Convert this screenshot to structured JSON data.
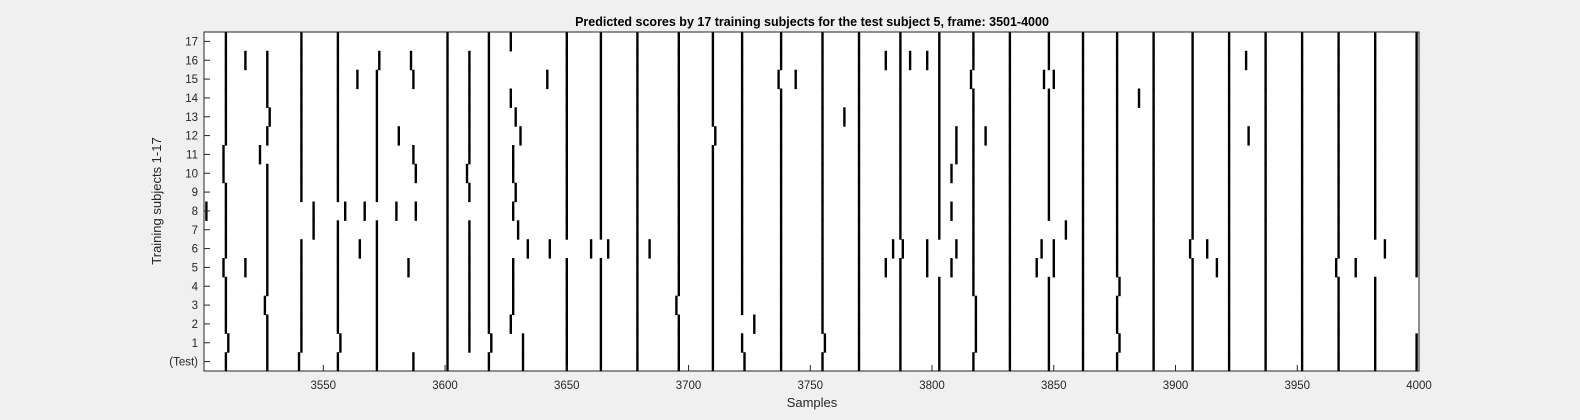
{
  "chart_data": {
    "type": "event-raster",
    "title": "Predicted scores by 17 training subjects for the test subject 5, frame: 3501-4000",
    "xlabel": "Samples",
    "ylabel": "Training subjects 1-17",
    "xlim": [
      3501,
      4000
    ],
    "x_ticks": [
      3550,
      3600,
      3650,
      3700,
      3750,
      3800,
      3850,
      3900,
      3950,
      4000
    ],
    "y_tick_labels": [
      "(Test)",
      "1",
      "2",
      "3",
      "4",
      "5",
      "6",
      "7",
      "8",
      "9",
      "10",
      "11",
      "12",
      "13",
      "14",
      "15",
      "16",
      "17"
    ],
    "colors": {
      "background": "#f0f0f0",
      "axes": "#ffffff",
      "marks": "#000000"
    },
    "rows": [
      {
        "name": "(Test)",
        "x": [
          3510,
          3527,
          3540,
          3556,
          3572,
          3587,
          3601,
          3618,
          3632,
          3650,
          3664,
          3679,
          3696,
          3710,
          3723,
          3738,
          3755,
          3770,
          3787,
          3803,
          3817,
          3832,
          3848,
          3862,
          3876,
          3891,
          3907,
          3922,
          3937,
          3952,
          3967,
          3982,
          3999
        ]
      },
      {
        "name": "1",
        "x": [
          3511,
          3527,
          3541,
          3557,
          3572,
          3601,
          3610,
          3619,
          3632,
          3650,
          3664,
          3679,
          3696,
          3710,
          3722,
          3738,
          3756,
          3770,
          3787,
          3803,
          3818,
          3832,
          3848,
          3862,
          3877,
          3891,
          3907,
          3922,
          3937,
          3952,
          3967,
          3982,
          3999
        ]
      },
      {
        "name": "2",
        "x": [
          3510,
          3527,
          3541,
          3556,
          3572,
          3601,
          3610,
          3618,
          3627,
          3650,
          3664,
          3679,
          3696,
          3710,
          3727,
          3738,
          3755,
          3770,
          3787,
          3803,
          3818,
          3832,
          3848,
          3862,
          3876,
          3891,
          3907,
          3922,
          3937,
          3952,
          3967,
          3982
        ]
      },
      {
        "name": "3",
        "x": [
          3510,
          3526,
          3541,
          3556,
          3572,
          3601,
          3610,
          3618,
          3628,
          3650,
          3664,
          3679,
          3695,
          3710,
          3722,
          3738,
          3755,
          3770,
          3787,
          3803,
          3818,
          3832,
          3848,
          3862,
          3876,
          3891,
          3907,
          3922,
          3937,
          3952,
          3967,
          3982
        ]
      },
      {
        "name": "4",
        "x": [
          3510,
          3527,
          3541,
          3556,
          3572,
          3601,
          3610,
          3618,
          3628,
          3650,
          3664,
          3679,
          3696,
          3710,
          3722,
          3738,
          3755,
          3770,
          3787,
          3803,
          3817,
          3832,
          3848,
          3862,
          3877,
          3891,
          3907,
          3922,
          3937,
          3952,
          3967,
          3982
        ]
      },
      {
        "name": "5",
        "x": [
          3509,
          3518,
          3527,
          3541,
          3556,
          3572,
          3585,
          3601,
          3610,
          3618,
          3628,
          3650,
          3664,
          3679,
          3696,
          3710,
          3722,
          3738,
          3755,
          3770,
          3781,
          3787,
          3798,
          3808,
          3817,
          3832,
          3843,
          3850,
          3862,
          3876,
          3891,
          3907,
          3917,
          3922,
          3937,
          3952,
          3966,
          3974,
          3999
        ]
      },
      {
        "name": "6",
        "x": [
          3510,
          3527,
          3541,
          3556,
          3565,
          3572,
          3601,
          3610,
          3618,
          3634,
          3643,
          3660,
          3667,
          3679,
          3684,
          3696,
          3710,
          3722,
          3738,
          3755,
          3770,
          3784,
          3788,
          3798,
          3810,
          3817,
          3832,
          3845,
          3850,
          3862,
          3876,
          3891,
          3906,
          3913,
          3922,
          3937,
          3952,
          3967,
          3986,
          3999
        ]
      },
      {
        "name": "7",
        "x": [
          3510,
          3527,
          3546,
          3556,
          3572,
          3601,
          3610,
          3618,
          3630,
          3650,
          3664,
          3679,
          3696,
          3710,
          3722,
          3738,
          3755,
          3770,
          3787,
          3803,
          3817,
          3832,
          3855,
          3862,
          3876,
          3891,
          3907,
          3922,
          3937,
          3952,
          3967,
          3982,
          3999
        ]
      },
      {
        "name": "8",
        "x": [
          3502,
          3510,
          3527,
          3546,
          3559,
          3567,
          3580,
          3588,
          3601,
          3618,
          3628,
          3650,
          3664,
          3679,
          3696,
          3710,
          3722,
          3738,
          3755,
          3770,
          3787,
          3803,
          3808,
          3817,
          3832,
          3848,
          3862,
          3876,
          3891,
          3907,
          3922,
          3937,
          3952,
          3967,
          3982,
          3999
        ]
      },
      {
        "name": "9",
        "x": [
          3510,
          3527,
          3541,
          3556,
          3572,
          3601,
          3610,
          3618,
          3629,
          3650,
          3664,
          3679,
          3696,
          3710,
          3722,
          3738,
          3755,
          3770,
          3787,
          3803,
          3817,
          3832,
          3848,
          3862,
          3876,
          3891,
          3907,
          3922,
          3937,
          3952,
          3967,
          3982,
          3999
        ]
      },
      {
        "name": "10",
        "x": [
          3509,
          3527,
          3541,
          3556,
          3572,
          3588,
          3601,
          3609,
          3618,
          3628,
          3650,
          3664,
          3679,
          3696,
          3710,
          3722,
          3738,
          3755,
          3770,
          3787,
          3803,
          3808,
          3817,
          3832,
          3848,
          3862,
          3876,
          3891,
          3907,
          3922,
          3937,
          3952,
          3967,
          3982,
          3999
        ]
      },
      {
        "name": "11",
        "x": [
          3509,
          3524,
          3541,
          3556,
          3572,
          3587,
          3601,
          3610,
          3618,
          3628,
          3650,
          3664,
          3679,
          3696,
          3710,
          3722,
          3738,
          3755,
          3770,
          3787,
          3803,
          3810,
          3817,
          3832,
          3848,
          3862,
          3876,
          3891,
          3907,
          3922,
          3937,
          3952,
          3967,
          3982,
          3999
        ]
      },
      {
        "name": "12",
        "x": [
          3510,
          3527,
          3541,
          3556,
          3572,
          3581,
          3601,
          3610,
          3618,
          3631,
          3650,
          3664,
          3679,
          3696,
          3711,
          3722,
          3738,
          3755,
          3770,
          3787,
          3803,
          3810,
          3817,
          3822,
          3832,
          3848,
          3862,
          3876,
          3891,
          3907,
          3922,
          3930,
          3937,
          3952,
          3967,
          3982,
          3999
        ]
      },
      {
        "name": "13",
        "x": [
          3510,
          3528,
          3541,
          3556,
          3572,
          3601,
          3610,
          3618,
          3629,
          3650,
          3664,
          3679,
          3696,
          3710,
          3722,
          3738,
          3755,
          3764,
          3770,
          3787,
          3803,
          3817,
          3832,
          3848,
          3862,
          3876,
          3891,
          3907,
          3922,
          3937,
          3952,
          3967,
          3982,
          3999
        ]
      },
      {
        "name": "14",
        "x": [
          3510,
          3527,
          3541,
          3556,
          3572,
          3601,
          3610,
          3618,
          3627,
          3650,
          3664,
          3679,
          3696,
          3710,
          3722,
          3738,
          3755,
          3770,
          3787,
          3803,
          3817,
          3832,
          3848,
          3862,
          3876,
          3885,
          3891,
          3907,
          3922,
          3937,
          3952,
          3967,
          3982,
          3999
        ]
      },
      {
        "name": "15",
        "x": [
          3510,
          3527,
          3541,
          3556,
          3564,
          3572,
          3587,
          3601,
          3610,
          3618,
          3642,
          3650,
          3664,
          3679,
          3696,
          3710,
          3722,
          3737,
          3744,
          3755,
          3770,
          3787,
          3803,
          3816,
          3832,
          3846,
          3850,
          3862,
          3876,
          3891,
          3907,
          3922,
          3937,
          3952,
          3967,
          3982,
          3999
        ]
      },
      {
        "name": "16",
        "x": [
          3510,
          3518,
          3527,
          3541,
          3556,
          3573,
          3586,
          3601,
          3610,
          3618,
          3650,
          3664,
          3679,
          3696,
          3710,
          3722,
          3738,
          3755,
          3770,
          3781,
          3787,
          3791,
          3798,
          3803,
          3817,
          3832,
          3848,
          3862,
          3876,
          3891,
          3907,
          3922,
          3929,
          3937,
          3952,
          3967,
          3982,
          3999
        ]
      },
      {
        "name": "17",
        "x": [
          3510,
          3541,
          3556,
          3601,
          3618,
          3627,
          3650,
          3664,
          3679,
          3696,
          3710,
          3722,
          3738,
          3755,
          3770,
          3787,
          3803,
          3817,
          3832,
          3848,
          3862,
          3876,
          3891,
          3907,
          3922,
          3937,
          3952,
          3967,
          3982,
          3999
        ]
      }
    ]
  }
}
